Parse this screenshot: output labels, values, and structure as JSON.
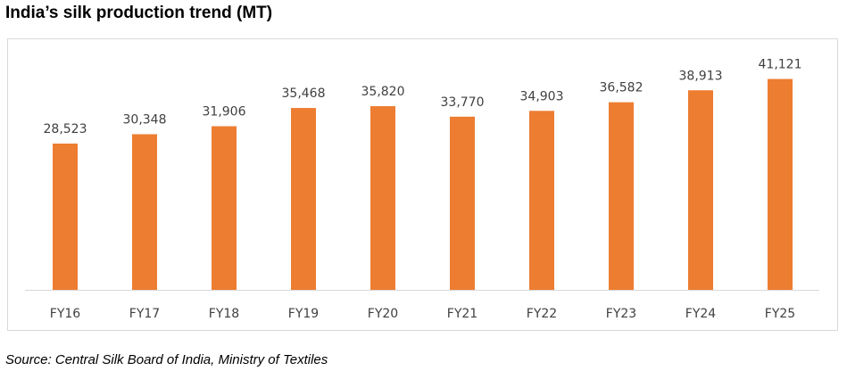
{
  "title": "India’s silk production trend (MT)",
  "source": "Source: Central Silk Board of India, Ministry of Textiles",
  "colors": {
    "bar": "#ED7D31",
    "label": "#404040",
    "highlight": "#FF0000"
  },
  "chart_data": {
    "type": "bar",
    "title": "India’s silk production trend (MT)",
    "xlabel": "",
    "ylabel": "",
    "categories": [
      "FY16",
      "FY17",
      "FY18",
      "FY19",
      "FY20",
      "FY21",
      "FY22",
      "FY23",
      "FY24",
      "FY25"
    ],
    "values": [
      28523,
      30348,
      31906,
      35468,
      35820,
      33770,
      34903,
      36582,
      38913,
      41121
    ],
    "value_labels": [
      "28,523",
      "30,348",
      "31,906",
      "35,468",
      "35,820",
      "33,770",
      "34,903",
      "36,582",
      "38,913",
      "41,121"
    ],
    "highlighted_label": "FY22",
    "ylim": [
      0,
      48000
    ],
    "grid": false,
    "legend": "none"
  }
}
